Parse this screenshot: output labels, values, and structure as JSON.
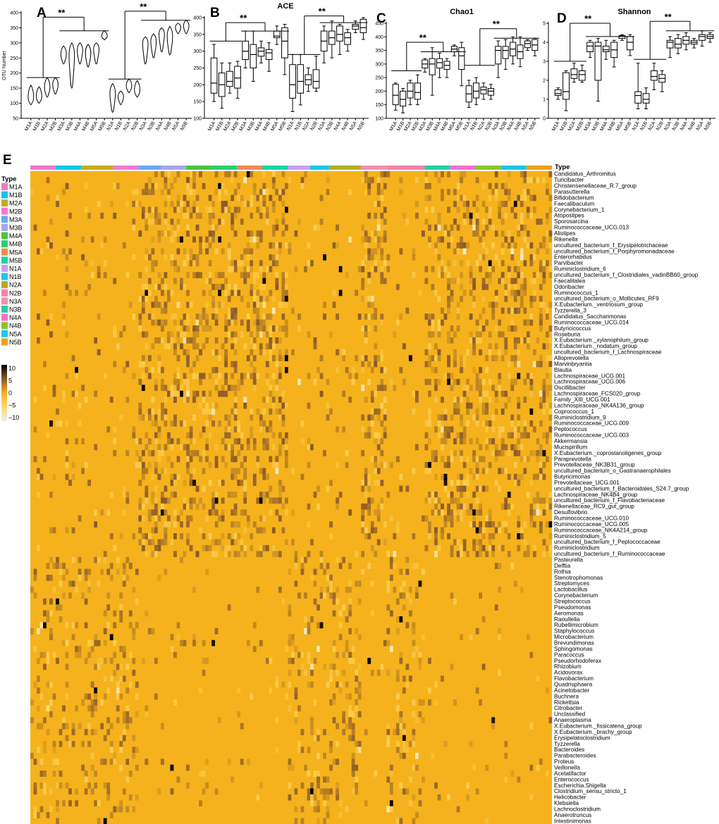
{
  "figure": {
    "panels": [
      "A",
      "B",
      "C",
      "D",
      "E"
    ],
    "significance": "**",
    "colorbar": {
      "ticks": [
        "10",
        "5",
        "0",
        "−5",
        "−10"
      ]
    }
  },
  "chart_data": [
    {
      "type": "violin",
      "panel": "A",
      "title": "",
      "ylabel": "OTU Number",
      "ylim": [
        50,
        400
      ],
      "yticks": [
        50,
        100,
        150,
        200,
        250,
        300,
        350,
        400
      ],
      "categories": [
        "M1A",
        "M1B",
        "M2A",
        "M2B",
        "M3A",
        "M3B",
        "M4A",
        "M4B",
        "M5A",
        "M5B",
        "N1A",
        "N1B",
        "N2A",
        "N2B",
        "N3A",
        "N3B",
        "N4A",
        "N4B",
        "N5A",
        "N5B"
      ],
      "series": [
        {
          "stats": [
            [
              95,
              115,
              160
            ],
            [
              100,
              118,
              155
            ],
            [
              120,
              150,
              185
            ],
            [
              130,
              160,
              185
            ],
            [
              230,
              260,
              290
            ],
            [
              150,
              260,
              300
            ],
            [
              230,
              275,
              300
            ],
            [
              220,
              265,
              295
            ],
            [
              230,
              280,
              300
            ],
            [
              310,
              320,
              340
            ],
            [
              70,
              130,
              165
            ],
            [
              95,
              120,
              140
            ],
            [
              135,
              155,
              180
            ],
            [
              120,
              140,
              175
            ],
            [
              230,
              300,
              320
            ],
            [
              250,
              305,
              330
            ],
            [
              270,
              330,
              350
            ],
            [
              260,
              320,
              355
            ],
            [
              330,
              350,
              365
            ],
            [
              330,
              355,
              375
            ]
          ]
        }
      ],
      "brackets": [
        "M1A–M2B vs M3A–M5B",
        "N1A–N2B vs N3A–N5B"
      ]
    },
    {
      "type": "box",
      "panel": "B",
      "title": "ACE",
      "ylabel": "",
      "ylim": [
        100,
        400
      ],
      "yticks": [
        100,
        150,
        200,
        250,
        300,
        350,
        400
      ],
      "categories": [
        "M1A",
        "M1B",
        "M2A",
        "M2B",
        "M3A",
        "M3B",
        "M4A",
        "M4B",
        "M5A",
        "M5B",
        "N1A",
        "N1B",
        "N2A",
        "N2B",
        "N3A",
        "N3B",
        "N4A",
        "N4B",
        "N5A",
        "N5B"
      ],
      "series": [
        {
          "stats": [
            [
              150,
              175,
              205,
              280,
              320
            ],
            [
              130,
              165,
              200,
              235,
              265
            ],
            [
              175,
              195,
              210,
              240,
              265
            ],
            [
              160,
              190,
              220,
              255,
              270
            ],
            [
              250,
              275,
              300,
              330,
              360
            ],
            [
              210,
              250,
              290,
              320,
              360
            ],
            [
              265,
              285,
              300,
              310,
              330
            ],
            [
              240,
              275,
              295,
              305,
              325
            ],
            [
              320,
              340,
              345,
              360,
              375
            ],
            [
              230,
              280,
              330,
              370,
              380
            ],
            [
              120,
              160,
              200,
              260,
              290
            ],
            [
              140,
              175,
              210,
              260,
              290
            ],
            [
              180,
              200,
              215,
              230,
              250
            ],
            [
              180,
              190,
              210,
              245,
              285
            ],
            [
              265,
              300,
              330,
              360,
              375
            ],
            [
              280,
              320,
              340,
              360,
              390
            ],
            [
              290,
              330,
              350,
              375,
              380
            ],
            [
              300,
              320,
              340,
              355,
              365
            ],
            [
              355,
              365,
              375,
              380,
              390
            ],
            [
              335,
              355,
              370,
              395,
              400
            ]
          ]
        }
      ],
      "brackets": [
        "M1A–M2B vs M3A–M5B",
        "N1A–N2B vs N3A–N5B"
      ]
    },
    {
      "type": "box",
      "panel": "C",
      "title": "Chao1",
      "ylabel": "",
      "ylim": [
        100,
        450
      ],
      "yticks": [
        100,
        150,
        200,
        250,
        300,
        350,
        400,
        450
      ],
      "categories": [
        "M1A",
        "M1B",
        "M2A",
        "M2B",
        "M3A",
        "M3B",
        "M4A",
        "M4B",
        "M5A",
        "M5B",
        "N1A",
        "N1B",
        "N2A",
        "N2B",
        "N3A",
        "N3B",
        "N4A",
        "N4B",
        "N5A",
        "N5B"
      ],
      "series": [
        {
          "stats": [
            [
              130,
              150,
              185,
              225,
              230
            ],
            [
              120,
              145,
              170,
              200,
              210
            ],
            [
              150,
              175,
              200,
              230,
              240
            ],
            [
              150,
              170,
              195,
              230,
              260
            ],
            [
              270,
              285,
              300,
              315,
              320
            ],
            [
              185,
              260,
              300,
              320,
              360
            ],
            [
              250,
              285,
              305,
              320,
              340
            ],
            [
              250,
              280,
              295,
              310,
              320
            ],
            [
              330,
              345,
              355,
              365,
              370
            ],
            [
              220,
              280,
              330,
              360,
              380
            ],
            [
              140,
              160,
              190,
              220,
              240
            ],
            [
              150,
              175,
              200,
              230,
              250
            ],
            [
              170,
              190,
              205,
              215,
              230
            ],
            [
              170,
              185,
              200,
              210,
              225
            ],
            [
              250,
              300,
              350,
              365,
              385
            ],
            [
              280,
              320,
              350,
              365,
              390
            ],
            [
              300,
              330,
              355,
              380,
              400
            ],
            [
              290,
              320,
              345,
              370,
              400
            ],
            [
              350,
              360,
              375,
              385,
              390
            ],
            [
              330,
              350,
              370,
              390,
              395
            ]
          ]
        }
      ],
      "brackets": [
        "M1A–M2B vs M3A–M5B",
        "N1A–N2B vs N3A–N5B"
      ]
    },
    {
      "type": "box",
      "panel": "D",
      "title": "Shannon",
      "ylabel": "",
      "ylim": [
        0,
        5
      ],
      "yticks": [
        0,
        1,
        2,
        3,
        4,
        5
      ],
      "categories": [
        "M1A",
        "M1B",
        "M2A",
        "M2B",
        "M3A",
        "M3B",
        "M4A",
        "M4B",
        "M5A",
        "M5B",
        "N1A",
        "N1B",
        "N2A",
        "N2B",
        "N3A",
        "N3B",
        "N4A",
        "N4B",
        "N5A",
        "N5B"
      ],
      "series": [
        {
          "stats": [
            [
              1.0,
              1.2,
              1.3,
              1.5,
              1.6
            ],
            [
              0.4,
              1.0,
              1.4,
              2.4,
              2.5
            ],
            [
              1.9,
              2.1,
              2.3,
              2.6,
              2.9
            ],
            [
              1.9,
              2.0,
              2.3,
              2.5,
              2.8
            ],
            [
              3.2,
              3.5,
              3.8,
              4.0,
              4.1
            ],
            [
              0.9,
              2.0,
              3.8,
              4.0,
              4.2
            ],
            [
              3.1,
              3.5,
              3.6,
              3.8,
              4.1
            ],
            [
              2.7,
              3.2,
              3.6,
              4.0,
              4.1
            ],
            [
              4.1,
              4.2,
              4.3,
              4.35,
              4.4
            ],
            [
              3.3,
              3.6,
              4.0,
              4.3,
              4.4
            ],
            [
              0.5,
              0.8,
              1.2,
              1.4,
              2.9
            ],
            [
              0.5,
              0.8,
              1.0,
              1.3,
              1.6
            ],
            [
              1.5,
              2.0,
              2.2,
              2.5,
              2.9
            ],
            [
              1.4,
              1.9,
              2.1,
              2.3,
              2.5
            ],
            [
              3.2,
              3.7,
              4.0,
              4.1,
              4.3
            ],
            [
              3.4,
              3.7,
              3.9,
              4.2,
              4.4
            ],
            [
              3.6,
              3.9,
              4.1,
              4.3,
              4.5
            ],
            [
              3.7,
              3.9,
              4.0,
              4.1,
              4.2
            ],
            [
              3.8,
              4.1,
              4.3,
              4.4,
              4.6
            ],
            [
              4.0,
              4.2,
              4.3,
              4.4,
              4.5
            ]
          ]
        }
      ],
      "brackets": [
        "M1A–M2B vs M3A–M5B",
        "N1A–N2B vs N3A–N5B"
      ]
    },
    {
      "type": "heatmap",
      "panel": "E",
      "legend_title": "Type",
      "types": [
        "M1A",
        "M1B",
        "M2A",
        "M2B",
        "M3A",
        "M3B",
        "M4A",
        "M4B",
        "M5A",
        "M5B",
        "N1A",
        "N1B",
        "N2A",
        "N2B",
        "N3A",
        "N3B",
        "N4A",
        "N4B",
        "N5A",
        "N5B"
      ],
      "type_colors": {
        "M1A": "#f078c8",
        "M1B": "#16c3e6",
        "M2A": "#c7ab1a",
        "M2B": "#f07ad4",
        "M3A": "#6aa8f0",
        "M3B": "#a9a6ea",
        "M4A": "#4cc43a",
        "M4B": "#2bcf6f",
        "M5A": "#f08a55",
        "M5B": "#1fd3a0",
        "N1A": "#cc9ff0",
        "N1B": "#1fc6e0",
        "N2A": "#b2ad25",
        "N2B": "#f282aa",
        "N3A": "#f090b0",
        "N3B": "#28cda8",
        "N4A": "#f46fd0",
        "N4B": "#8bc52c",
        "N5A": "#1ec5ee",
        "N5B": "#f0a018"
      },
      "column_type_order": [
        "M1A",
        "M1B",
        "M2A",
        "M2B",
        "M3A",
        "M3B",
        "M4A",
        "M4B",
        "M5A",
        "M5B",
        "N1A",
        "N1B",
        "N2A",
        "N3A",
        "N2B",
        "N3B",
        "N4A",
        "N4B",
        "N5A",
        "N5B"
      ],
      "value_range": [
        -10,
        10
      ],
      "color_stops": [
        {
          "value": -10,
          "color": "#eeeeee"
        },
        {
          "value": -5,
          "color": "#ffd966"
        },
        {
          "value": 0,
          "color": "#f5b21c"
        },
        {
          "value": 5,
          "color": "#8a5a2a"
        },
        {
          "value": 10,
          "color": "#000000"
        }
      ],
      "rows": [
        "Candidatus_Arthromitus",
        "Turicibacter",
        "Christensenellaceae_R.7_group",
        "Parasutterella",
        "Bifidobacterium",
        "Faecalibaculum",
        "Corynebacterium_1",
        "Atopostipes",
        "Sporosarcina",
        "Ruminococcaceae_UCG.013",
        "Alistipes",
        "Rikenella",
        "uncultured_bacterium_f_Erysipelotrichaceae",
        "uncultured_bacterium_f_Porphyromonadaceae",
        "Enterorhabdus",
        "Parvibacter",
        "Ruminiclostridium_6",
        "uncultured_bacterium_f_Clostridiales_vadinBB60_group",
        "Faecalitalea",
        "Odoribacter",
        "Ruminococcus_1",
        "uncultured_bacterium_o_Mollicutes_RF9",
        "X.Eubacterium._ventriosum_group",
        "Tyzzerella_3",
        "Candidatus_Saccharimonas",
        "Ruminococcaceae_UCG.014",
        "Butyricicoccus",
        "Roseburia",
        "X.Eubacterium._xylanophilum_group",
        "X.Eubacterium._nodatum_group",
        "uncultured_bacterium_f_Lachnospiraceae",
        "Alloprevotella",
        "Marvinbryantia",
        "Blautia",
        "Lachnospiraceae_UCG.001",
        "Lachnospiraceae_UCG.006",
        "Oscillibacter",
        "Lachnospiraceae_FCS020_group",
        "Family_XIII_UCG.001",
        "Lachnospiraceae_NK4A136_group",
        "Coprococcus_1",
        "Ruminiclostridium_9",
        "Ruminococcaceae_UCG.009",
        "Peptococcus",
        "Ruminococcaceae_UCG.003",
        "Akkermansia",
        "Mucispirillum",
        "X.Eubacterium._coprostanoligenes_group",
        "Paraprevotella",
        "Prevotellaceae_NK3B31_group",
        "uncultured_bacterium_o_Gastranaerophilales",
        "Butyricimonas",
        "Prevotellaceae_UCG.001",
        "uncultured_bacterium_f_Bacteroidales_S24.7_group",
        "Lachnospiraceae_NK4B4_group",
        "uncultured_bacterium_f_Flavobacteriaceae",
        "Rikenellaceae_RC9_gut_group",
        "Desulfovibrio",
        "Ruminococcaceae_UCG.010",
        "Ruminococcaceae_UCG.005",
        "Ruminococcaceae_NK4A214_group",
        "Ruminiclostridium_5",
        "uncultured_bacterium_f_Peptococcaceae",
        "Ruminiclostridium",
        "uncultured_bacterium_f_Ruminococcaceae",
        "Pasteurella",
        "Delftia",
        "Rothia",
        "Stenotrophomonas",
        "Streptomyces",
        "Lactobacillus",
        "Corynebacterium",
        "Streptococcus",
        "Pseudomonas",
        "Aeromonas",
        "Raoultella",
        "Rubellimicrobium",
        "Staphylococcus",
        "Microbacterium",
        "Brevundimonas",
        "Sphingomonas",
        "Paracoccus",
        "Pseudorhodoferax",
        "Rhizobium",
        "Acidovorax",
        "Flavobacterium",
        "Quadrisphaera",
        "Acinetobacter",
        "Buchnera",
        "Rickettsia",
        "Citrobacter",
        "Unclassified",
        "Anaeroplasma",
        "X.Eubacterium._fissicatena_group",
        "X.Eubacterium._brachy_group",
        "Erysipelatoclostridium",
        "Tyzzerella",
        "Bacteroides",
        "Parabacteroides",
        "Proteus",
        "Veillonella",
        "Acetatifactor",
        "Enterococcus",
        "Escherichia.Shigella",
        "Clostridium_sensu_stricto_1",
        "Helicobacter",
        "Klebsiella",
        "Lachnoclostridium",
        "Anaerotruncus",
        "Intestinimonas"
      ]
    }
  ]
}
